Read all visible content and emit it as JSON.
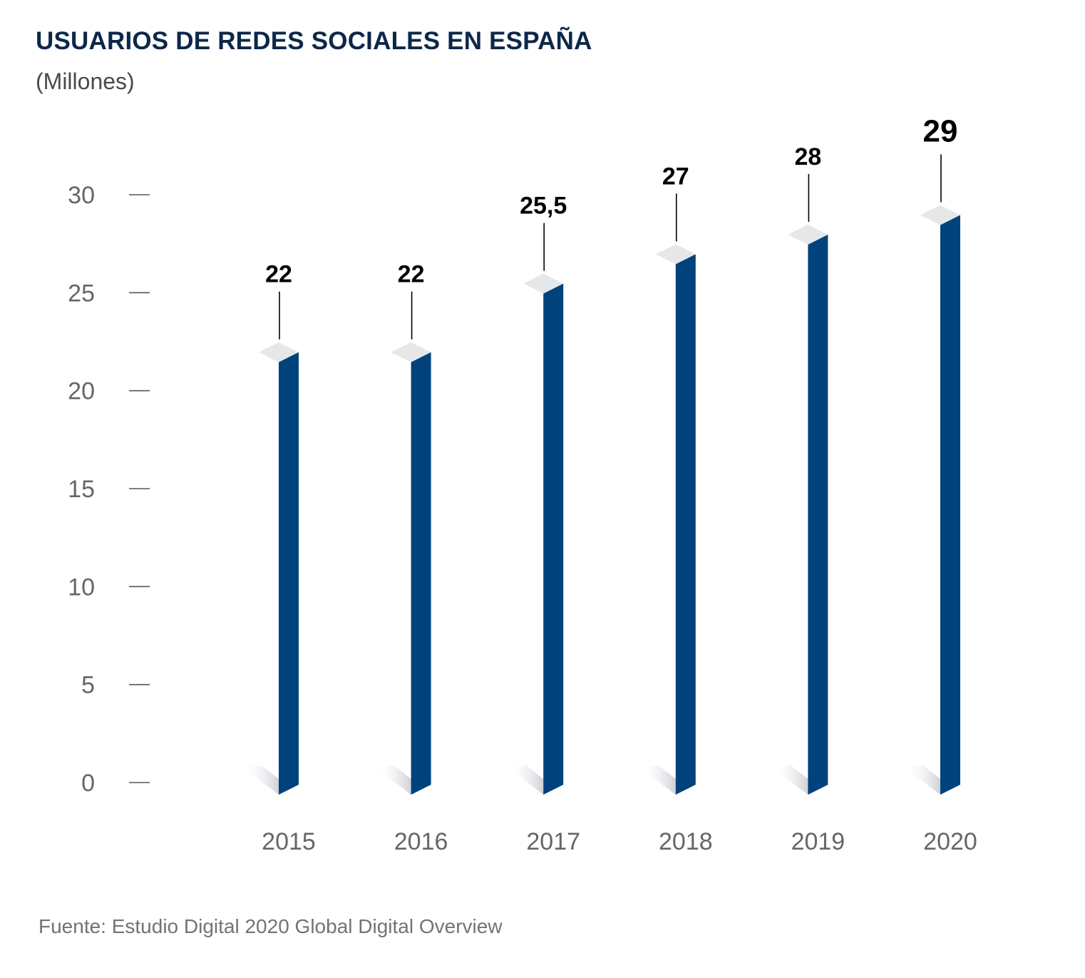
{
  "title": "USUARIOS DE REDES SOCIALES EN ESPAÑA",
  "subtitle": "(Millones)",
  "source": "Fuente: Estudio Digital 2020 Global Digital Overview",
  "colors": {
    "bar": "#00427c",
    "title": "#0c2749",
    "axis_text": "#666666",
    "value_label": "#000000",
    "bar_cap": "#e6e7e9"
  },
  "chart_data": {
    "type": "bar",
    "categories": [
      "2015",
      "2016",
      "2017",
      "2018",
      "2019",
      "2020"
    ],
    "values": [
      22,
      22,
      25.5,
      27,
      28,
      29
    ],
    "value_labels": [
      "22",
      "22",
      "25,5",
      "27",
      "28",
      "29"
    ],
    "title": "USUARIOS DE REDES SOCIALES EN ESPAÑA",
    "subtitle": "(Millones)",
    "xlabel": "",
    "ylabel": "",
    "ylim": [
      0,
      30
    ],
    "yticks": [
      0,
      5,
      10,
      15,
      20,
      25,
      30
    ],
    "ytick_labels": [
      "0",
      "5",
      "10",
      "15",
      "20",
      "25",
      "30"
    ],
    "grid": false,
    "legend": "none"
  }
}
